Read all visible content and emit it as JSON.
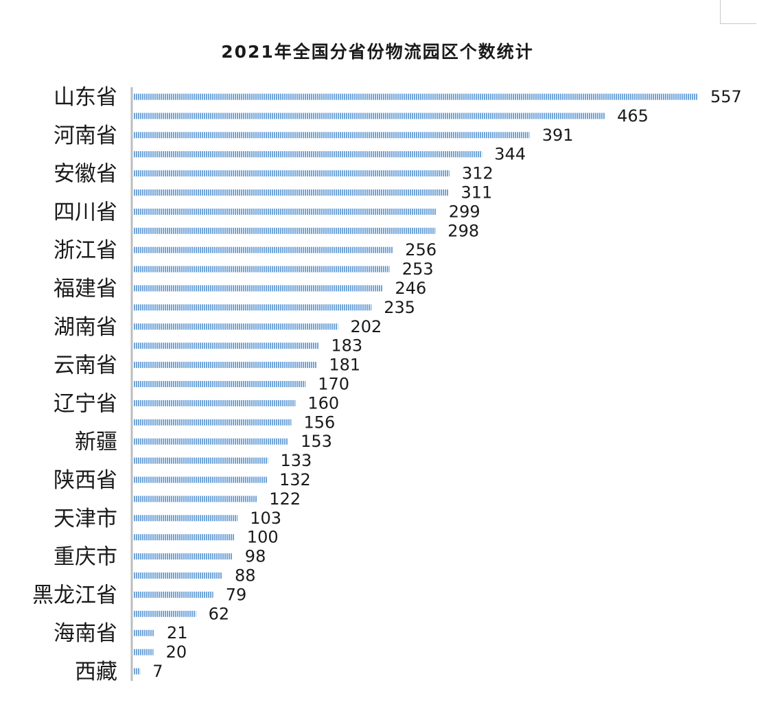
{
  "chart_data": {
    "type": "bar",
    "orientation": "horizontal",
    "title": "2021年全国分省份物流园区个数统计",
    "values": [
      557,
      465,
      391,
      344,
      312,
      311,
      299,
      298,
      256,
      253,
      246,
      235,
      202,
      183,
      181,
      170,
      160,
      156,
      153,
      133,
      132,
      122,
      103,
      100,
      98,
      88,
      79,
      62,
      21,
      20,
      7
    ],
    "category_labels": [
      {
        "index": 0,
        "label": "山东省"
      },
      {
        "index": 2,
        "label": "河南省"
      },
      {
        "index": 4,
        "label": "安徽省"
      },
      {
        "index": 6,
        "label": "四川省"
      },
      {
        "index": 8,
        "label": "浙江省"
      },
      {
        "index": 10,
        "label": "福建省"
      },
      {
        "index": 12,
        "label": "湖南省"
      },
      {
        "index": 14,
        "label": "云南省"
      },
      {
        "index": 16,
        "label": "辽宁省"
      },
      {
        "index": 18,
        "label": "新疆"
      },
      {
        "index": 20,
        "label": "陕西省"
      },
      {
        "index": 22,
        "label": "天津市"
      },
      {
        "index": 24,
        "label": "重庆市"
      },
      {
        "index": 26,
        "label": "黑龙江省"
      },
      {
        "index": 28,
        "label": "海南省"
      },
      {
        "index": 30,
        "label": "西藏"
      }
    ],
    "xlim": [
      0,
      557
    ],
    "data_labels": true,
    "legend": "none",
    "grid": false,
    "colors": {
      "bar": "#6fa3d8",
      "bar_stripe": "#ffffff",
      "axis": "#bdbdbd",
      "text": "#1a1a1a"
    }
  }
}
